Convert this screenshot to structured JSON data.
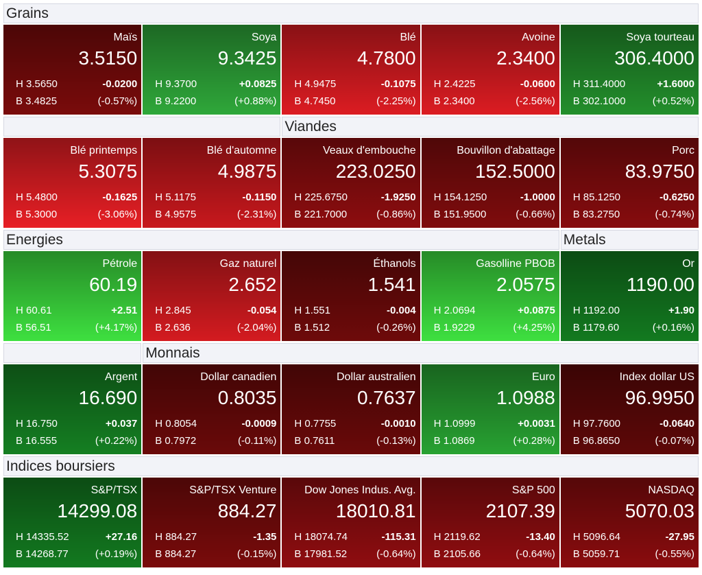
{
  "rows": [
    {
      "headers": [
        {
          "title": "Grains"
        }
      ],
      "tiles": [
        {
          "name": "Maïs",
          "last": "3.5150",
          "high": "H 3.5650",
          "change": "-0.0200",
          "low": "B 3.4825",
          "pct": "(-0.57%)",
          "color": "#7a0b0b"
        },
        {
          "name": "Soya",
          "last": "9.3425",
          "high": "H 9.3700",
          "change": "+0.0825",
          "low": "B 9.2200",
          "pct": "(+0.88%)",
          "color": "#2fa83a"
        },
        {
          "name": "Blé",
          "last": "4.7800",
          "high": "H 4.9475",
          "change": "-0.1075",
          "low": "B 4.7450",
          "pct": "(-2.25%)",
          "color": "#dc1c22"
        },
        {
          "name": "Avoine",
          "last": "2.3400",
          "high": "H 2.4225",
          "change": "-0.0600",
          "low": "B 2.3400",
          "pct": "(-2.56%)",
          "color": "#dc1c22"
        },
        {
          "name": "Soya tourteau",
          "last": "306.4000",
          "high": "H 311.4000",
          "change": "+1.6000",
          "low": "B 302.1000",
          "pct": "(+0.52%)",
          "color": "#238f2c"
        }
      ]
    },
    {
      "headers": [
        {
          "title": "Viandes"
        }
      ],
      "tiles": [
        {
          "name": "Blé printemps",
          "last": "5.3075",
          "high": "H 5.4800",
          "change": "-0.1625",
          "low": "B 5.3000",
          "pct": "(-3.06%)",
          "color": "#e81f25"
        },
        {
          "name": "Blé d'automne",
          "last": "4.9875",
          "high": "H 5.1175",
          "change": "-0.1150",
          "low": "B 4.9575",
          "pct": "(-2.31%)",
          "color": "#c8181d"
        },
        {
          "name": "Veaux d'embouche",
          "last": "223.0250",
          "high": "H 225.6750",
          "change": "-1.9250",
          "low": "B 221.7000",
          "pct": "(-0.86%)",
          "color": "#8e0d0f"
        },
        {
          "name": "Bouvillon d'abattage",
          "last": "152.5000",
          "high": "H 154.1250",
          "change": "-1.0000",
          "low": "B 151.9500",
          "pct": "(-0.66%)",
          "color": "#800c0d"
        },
        {
          "name": "Porc",
          "last": "83.9750",
          "high": "H 85.1250",
          "change": "-0.6250",
          "low": "B 83.2750",
          "pct": "(-0.74%)",
          "color": "#870c0e"
        }
      ]
    },
    {
      "headers": [
        {
          "title": "Energies"
        },
        {
          "title": "Metals"
        }
      ],
      "tiles": [
        {
          "name": "Pétrole",
          "last": "60.19",
          "high": "H 60.61",
          "change": "+2.51",
          "low": "B 56.51",
          "pct": "(+4.17%)",
          "color": "#3ee040"
        },
        {
          "name": "Gaz naturel",
          "last": "2.652",
          "high": "H 2.845",
          "change": "-0.054",
          "low": "B 2.636",
          "pct": "(-2.04%)",
          "color": "#d41b20"
        },
        {
          "name": "Éthanols",
          "last": "1.541",
          "high": "H 1.551",
          "change": "-0.004",
          "low": "B 1.512",
          "pct": "(-0.26%)",
          "color": "#6e0a0a"
        },
        {
          "name": "Gasolline PBOB",
          "last": "2.0575",
          "high": "H 2.0694",
          "change": "+0.0875",
          "low": "B 1.9229",
          "pct": "(+4.25%)",
          "color": "#3ee040"
        },
        {
          "name": "Or",
          "last": "1190.00",
          "high": "H 1192.00",
          "change": "+1.90",
          "low": "B 1179.60",
          "pct": "(+0.16%)",
          "color": "#137a20"
        }
      ]
    },
    {
      "headers": [
        {
          "title": "Monnais"
        }
      ],
      "tiles": [
        {
          "name": "Argent",
          "last": "16.690",
          "high": "H 16.750",
          "change": "+0.037",
          "low": "B 16.555",
          "pct": "(+0.22%)",
          "color": "#157f22"
        },
        {
          "name": "Dollar canadien",
          "last": "0.8035",
          "high": "H 0.8054",
          "change": "-0.0009",
          "low": "B 0.7972",
          "pct": "(-0.11%)",
          "color": "#6a0909"
        },
        {
          "name": "Dollar australien",
          "last": "0.7637",
          "high": "H 0.7755",
          "change": "-0.0010",
          "low": "B 0.7611",
          "pct": "(-0.13%)",
          "color": "#6a0909"
        },
        {
          "name": "Euro",
          "last": "1.0988",
          "high": "H 1.0999",
          "change": "+0.0031",
          "low": "B 1.0869",
          "pct": "(+0.28%)",
          "color": "#28a232"
        },
        {
          "name": "Index dollar US",
          "last": "96.9950",
          "high": "H 97.7600",
          "change": "-0.0640",
          "low": "B 96.8650",
          "pct": "(-0.07%)",
          "color": "#5e0808"
        }
      ]
    },
    {
      "headers": [
        {
          "title": "Indices boursiers"
        }
      ],
      "tiles": [
        {
          "name": "S&P/TSX",
          "last": "14299.08",
          "high": "H 14335.52",
          "change": "+27.16",
          "low": "B 14268.77",
          "pct": "(+0.19%)",
          "color": "#137a20"
        },
        {
          "name": "S&P/TSX Venture",
          "last": "884.27",
          "high": "H 884.27",
          "change": "-1.35",
          "low": "B 884.27",
          "pct": "(-0.15%)",
          "color": "#7a0b0b"
        },
        {
          "name": "Dow Jones Indus. Avg.",
          "last": "18010.81",
          "high": "H 18074.74",
          "change": "-115.31",
          "low": "B 17981.52",
          "pct": "(-0.64%)",
          "color": "#900d10"
        },
        {
          "name": "S&P 500",
          "last": "2107.39",
          "high": "H 2119.62",
          "change": "-13.40",
          "low": "B 2105.66",
          "pct": "(-0.64%)",
          "color": "#900d10"
        },
        {
          "name": "NASDAQ",
          "last": "5070.03",
          "high": "H 5096.64",
          "change": "-27.95",
          "low": "B 5059.71",
          "pct": "(-0.55%)",
          "color": "#8a0c0e"
        }
      ]
    }
  ]
}
